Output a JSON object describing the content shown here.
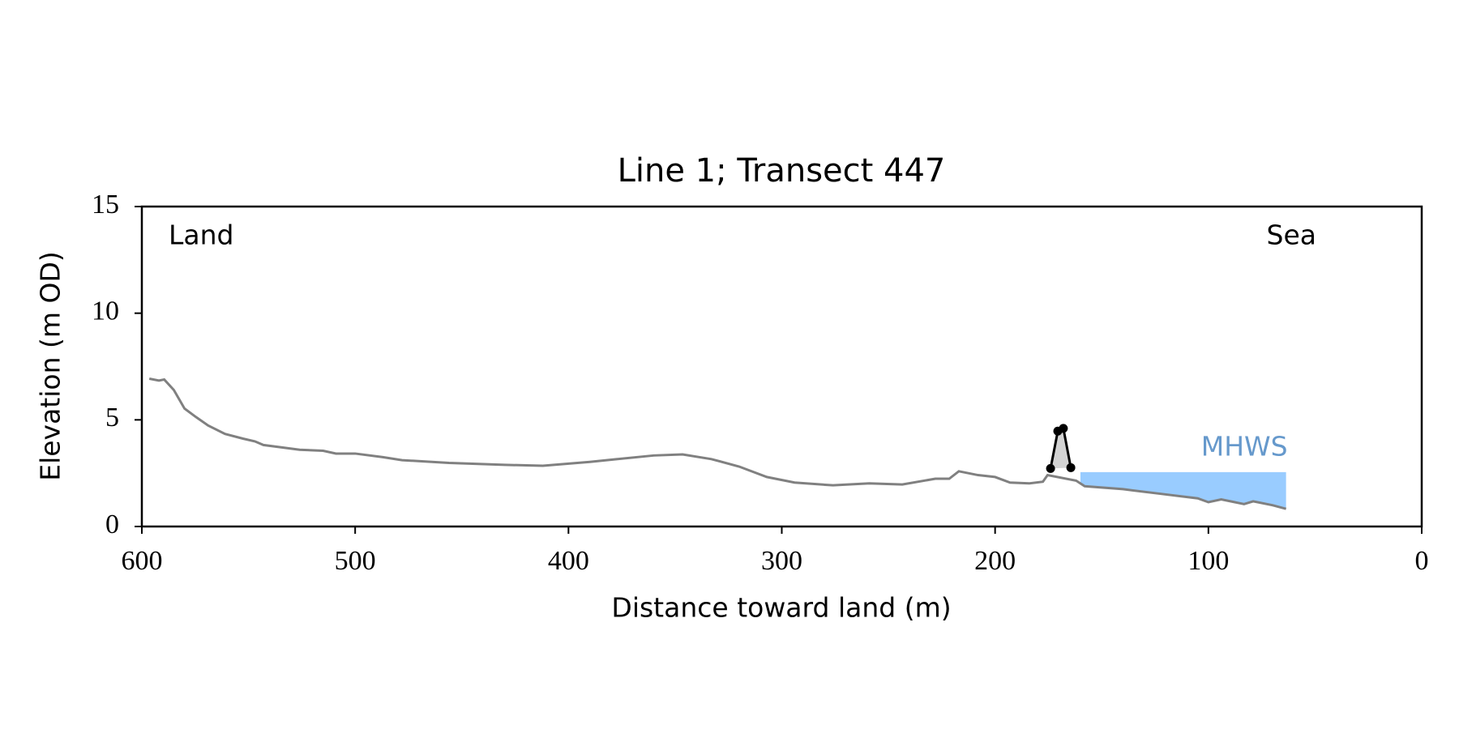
{
  "chart_data": {
    "type": "line",
    "title": "Line 1; Transect 447",
    "x_label": "Distance toward land (m)",
    "y_label": "Elevation (m OD)",
    "annotations": [
      "Land",
      "Sea"
    ],
    "xlim": [
      600,
      0
    ],
    "xticks": [
      600,
      500,
      400,
      300,
      200,
      100,
      0
    ],
    "ylim": [
      0,
      15
    ],
    "yticks": [
      0,
      5,
      10,
      15
    ],
    "profile": {
      "color": "#808080",
      "x": [
        596.5,
        592,
        589.5,
        585,
        580,
        574.6,
        569,
        561,
        552.6,
        547,
        543,
        526,
        515,
        509,
        500,
        487,
        478,
        456,
        430,
        412,
        390,
        377,
        360,
        346.5,
        333,
        320,
        307,
        294,
        276,
        259,
        243.5,
        228,
        221.5,
        217,
        208,
        200,
        193,
        184,
        177.6,
        175.4,
        162,
        158,
        140,
        123,
        105,
        100,
        94,
        83.3,
        79,
        70,
        63.6
      ],
      "y": [
        6.93,
        6.84,
        6.89,
        6.4,
        5.53,
        5.13,
        4.74,
        4.34,
        4.12,
        3.99,
        3.82,
        3.6,
        3.55,
        3.42,
        3.42,
        3.25,
        3.11,
        2.98,
        2.89,
        2.85,
        3.03,
        3.16,
        3.33,
        3.38,
        3.16,
        2.81,
        2.32,
        2.06,
        1.93,
        2.02,
        1.97,
        2.24,
        2.24,
        2.59,
        2.41,
        2.32,
        2.06,
        2.02,
        2.1,
        2.41,
        2.15,
        1.89,
        1.75,
        1.54,
        1.32,
        1.14,
        1.27,
        1.05,
        1.18,
        1.0,
        0.83
      ]
    },
    "dune": {
      "color": "#000000",
      "fill": "#d3d3d3",
      "x": [
        174,
        170.6,
        168,
        164.5
      ],
      "y": [
        2.72,
        4.47,
        4.6,
        2.76
      ]
    },
    "mhws": {
      "label": "MHWS",
      "level": 2.55,
      "x": [
        160,
        63.6
      ],
      "color": "#99ccff",
      "label_color": "#6699cc"
    }
  }
}
